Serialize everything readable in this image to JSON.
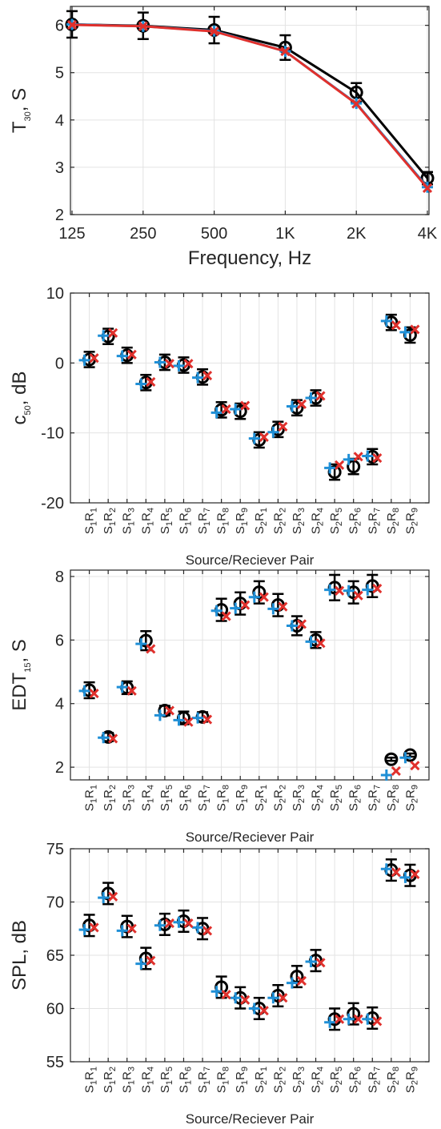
{
  "colors": {
    "measured": "#000000",
    "model_plus": "#1f8fd6",
    "model_x": "#e0302c",
    "grid": "#e3e3e3",
    "axis": "#262626"
  },
  "chart_data": [
    {
      "type": "line",
      "xlabel": "Frequency, Hz",
      "ylabel": "T30, S",
      "ylabel_main": "T",
      "ylabel_sub": "30",
      "ylabel_tail": ", S",
      "categories": [
        "125",
        "250",
        "500",
        "1K",
        "2K",
        "4K"
      ],
      "ylim": [
        2,
        6.4
      ],
      "yticks": [
        2,
        3,
        4,
        5,
        6
      ],
      "grid": true,
      "series": [
        {
          "marker": "circle",
          "color": "#000000",
          "values": [
            6.02,
            5.99,
            5.9,
            5.53,
            4.58,
            2.77
          ],
          "err": [
            0.28,
            0.28,
            0.28,
            0.26,
            0.2,
            0.13
          ]
        },
        {
          "marker": "plus",
          "color": "#1f8fd6",
          "values": [
            6.02,
            5.98,
            5.88,
            5.45,
            4.35,
            2.58
          ]
        },
        {
          "marker": "x",
          "color": "#e0302c",
          "values": [
            6.01,
            5.98,
            5.87,
            5.45,
            4.34,
            2.56
          ]
        }
      ]
    },
    {
      "type": "scatter",
      "xlabel": "Source/Reciever Pair",
      "ylabel": "c50, dB",
      "ylabel_main": "c",
      "ylabel_sub": "50",
      "ylabel_tail": ", dB",
      "categories": [
        "S1R1",
        "S1R2",
        "S1R3",
        "S1R4",
        "S1R5",
        "S1R6",
        "S1R7",
        "S1R8",
        "S1R9",
        "S2R1",
        "S2R2",
        "S2R3",
        "S2R4",
        "S2R5",
        "S2R6",
        "S2R7",
        "S2R8",
        "S2R9"
      ],
      "ylim": [
        -20,
        10
      ],
      "yticks": [
        -20,
        -10,
        0,
        10
      ],
      "grid": true,
      "series": [
        {
          "marker": "circle",
          "color": "#000000",
          "values": [
            0.5,
            3.8,
            1.1,
            -2.8,
            0.1,
            -0.3,
            -2.0,
            -6.7,
            -6.9,
            -11.0,
            -9.5,
            -6.4,
            -5.0,
            -15.6,
            -14.8,
            -13.4,
            5.8,
            4.0
          ],
          "err": [
            1.1,
            1.1,
            1.1,
            1.1,
            1.1,
            1.1,
            1.1,
            1.1,
            1.1,
            1.1,
            1.1,
            1.1,
            1.1,
            1.1,
            1.1,
            1.1,
            1.1,
            1.1
          ]
        },
        {
          "marker": "plus",
          "color": "#1f8fd6",
          "values": [
            0.4,
            3.9,
            1.0,
            -3.0,
            0.1,
            -0.4,
            -2.1,
            -7.1,
            -6.6,
            -10.8,
            -9.9,
            -6.2,
            -5.0,
            -15.0,
            -13.8,
            -13.3,
            6.0,
            4.4
          ]
        },
        {
          "marker": "x",
          "color": "#e0302c",
          "values": [
            0.7,
            4.3,
            1.2,
            -2.7,
            -0.1,
            -0.1,
            -1.8,
            -6.6,
            -6.1,
            -10.6,
            -9.1,
            -5.9,
            -4.7,
            -14.6,
            -13.4,
            -13.6,
            5.4,
            4.8
          ]
        }
      ]
    },
    {
      "type": "scatter",
      "xlabel": "Source/Reciever Pair",
      "ylabel": "EDT15, S",
      "ylabel_main": "EDT",
      "ylabel_sub": "15",
      "ylabel_tail": ", S",
      "categories": [
        "S1R1",
        "S1R2",
        "S1R3",
        "S1R4",
        "S1R5",
        "S1R6",
        "S1R7",
        "S1R8",
        "S1R9",
        "S2R1",
        "S2R2",
        "S2R3",
        "S2R4",
        "S2R5",
        "S2R6",
        "S2R7",
        "S2R8",
        "S2R9"
      ],
      "ylim": [
        1.6,
        8.2
      ],
      "yticks": [
        2,
        4,
        6,
        8
      ],
      "grid": true,
      "series": [
        {
          "marker": "circle",
          "color": "#000000",
          "values": [
            4.42,
            2.95,
            4.5,
            5.98,
            3.78,
            3.55,
            3.58,
            6.95,
            7.15,
            7.5,
            7.1,
            6.45,
            6.0,
            7.65,
            7.5,
            7.7,
            2.25,
            2.38
          ],
          "err": [
            0.25,
            0.13,
            0.2,
            0.3,
            0.15,
            0.2,
            0.15,
            0.35,
            0.35,
            0.35,
            0.35,
            0.3,
            0.25,
            0.4,
            0.35,
            0.35,
            0.05,
            0.05
          ]
        },
        {
          "marker": "plus",
          "color": "#1f8fd6",
          "values": [
            4.4,
            2.93,
            4.52,
            5.88,
            3.63,
            3.48,
            3.55,
            6.92,
            7.0,
            7.35,
            6.98,
            6.45,
            5.95,
            7.58,
            7.55,
            7.58,
            1.75,
            2.3
          ]
        },
        {
          "marker": "x",
          "color": "#e0302c",
          "values": [
            4.32,
            2.9,
            4.4,
            5.72,
            3.78,
            3.42,
            3.5,
            6.75,
            7.1,
            7.35,
            7.05,
            6.5,
            5.9,
            7.55,
            7.4,
            7.62,
            1.88,
            2.05
          ]
        }
      ]
    },
    {
      "type": "scatter",
      "xlabel": "Source/Reciever Pair",
      "ylabel": "SPL, dB",
      "categories": [
        "S1R1",
        "S1R2",
        "S1R3",
        "S1R4",
        "S1R5",
        "S1R6",
        "S1R7",
        "S1R8",
        "S1R9",
        "S2R1",
        "S2R2",
        "S2R3",
        "S2R4",
        "S2R5",
        "S2R6",
        "S2R7",
        "S2R8",
        "S2R9"
      ],
      "ylim": [
        55,
        75
      ],
      "yticks": [
        55,
        60,
        65,
        70,
        75
      ],
      "grid": true,
      "series": [
        {
          "marker": "circle",
          "color": "#000000",
          "values": [
            67.8,
            70.8,
            67.7,
            64.7,
            67.9,
            68.2,
            67.5,
            62.0,
            61.0,
            60.0,
            61.2,
            63.0,
            64.5,
            59.0,
            59.5,
            59.1,
            73.0,
            72.5
          ],
          "err": [
            1.0,
            1.0,
            1.0,
            1.0,
            1.0,
            1.0,
            1.0,
            1.0,
            1.0,
            1.0,
            1.0,
            1.0,
            1.0,
            1.0,
            1.0,
            1.0,
            1.0,
            1.0
          ]
        },
        {
          "marker": "plus",
          "color": "#1f8fd6",
          "values": [
            67.4,
            70.4,
            67.3,
            64.2,
            67.8,
            68.1,
            67.6,
            61.6,
            61.0,
            60.0,
            61.0,
            62.4,
            64.4,
            58.7,
            59.0,
            59.0,
            73.1,
            72.3
          ]
        },
        {
          "marker": "x",
          "color": "#e0302c",
          "values": [
            67.6,
            70.5,
            67.5,
            64.5,
            68.0,
            68.0,
            67.3,
            61.3,
            60.8,
            59.8,
            61.0,
            62.6,
            64.3,
            59.0,
            59.0,
            58.8,
            72.8,
            72.6
          ]
        }
      ]
    }
  ]
}
